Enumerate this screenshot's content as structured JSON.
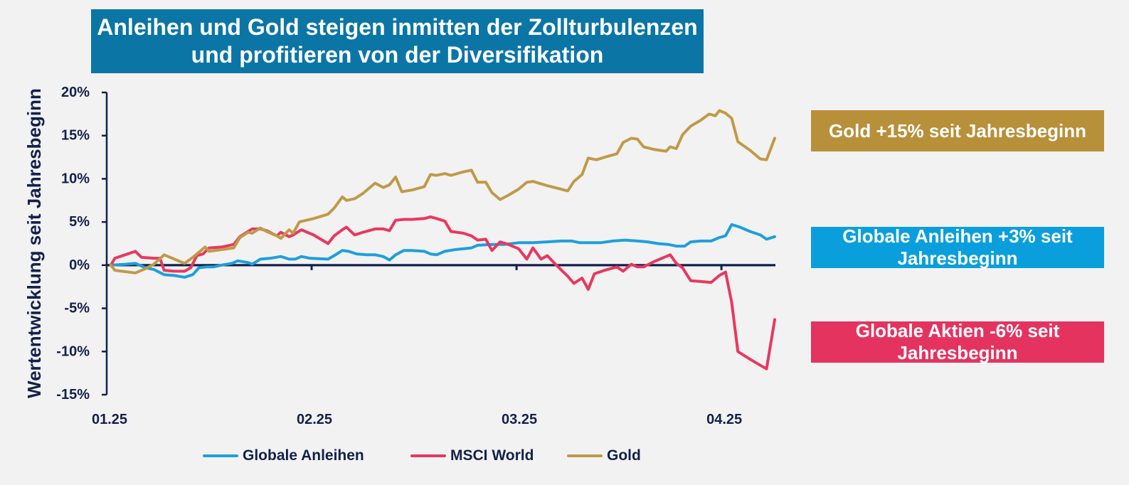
{
  "style": {
    "page_bg": "#f2f2f2",
    "title_bg": "#0b75a6",
    "axis_color": "#13214a"
  },
  "chart_data": {
    "type": "line",
    "title_lines": [
      "Anleihen und Gold steigen inmitten der Zollturbulenzen",
      "und profitieren von der Diversifikation"
    ],
    "xlabel": "",
    "ylabel": "Wertentwicklung seit Jahresbeginn",
    "xlim": [
      0,
      3.26
    ],
    "ylim": [
      -15,
      20
    ],
    "grid": false,
    "legend": "bottom",
    "xticks": [
      {
        "value": 0,
        "label": "01.25"
      },
      {
        "value": 1,
        "label": "02.25"
      },
      {
        "value": 2,
        "label": "03.25"
      },
      {
        "value": 3,
        "label": "04.25"
      }
    ],
    "yticks": [
      {
        "value": 20,
        "label": "20%"
      },
      {
        "value": 15,
        "label": "15%"
      },
      {
        "value": 10,
        "label": "10%"
      },
      {
        "value": 5,
        "label": "5%"
      },
      {
        "value": 0,
        "label": "0%"
      },
      {
        "value": -5,
        "label": "-5%"
      },
      {
        "value": -10,
        "label": "-10%"
      },
      {
        "value": -15,
        "label": "-15%"
      }
    ],
    "series": [
      {
        "name": "Globale Anleihen",
        "color": "#1e9fdc",
        "points": [
          [
            0.02,
            0.0
          ],
          [
            0.09,
            0.1
          ],
          [
            0.14,
            0.2
          ],
          [
            0.19,
            -0.3
          ],
          [
            0.23,
            -0.5
          ],
          [
            0.28,
            -1.1
          ],
          [
            0.33,
            -1.2
          ],
          [
            0.38,
            -1.4
          ],
          [
            0.42,
            -1.1
          ],
          [
            0.45,
            -0.3
          ],
          [
            0.49,
            -0.2
          ],
          [
            0.52,
            -0.2
          ],
          [
            0.56,
            0.0
          ],
          [
            0.61,
            0.2
          ],
          [
            0.64,
            0.5
          ],
          [
            0.69,
            0.3
          ],
          [
            0.71,
            0.1
          ],
          [
            0.75,
            0.7
          ],
          [
            0.8,
            0.8
          ],
          [
            0.85,
            1.0
          ],
          [
            0.89,
            0.7
          ],
          [
            0.92,
            0.7
          ],
          [
            0.95,
            1.0
          ],
          [
            0.99,
            0.8
          ],
          [
            1.08,
            0.7
          ],
          [
            1.11,
            1.1
          ],
          [
            1.15,
            1.7
          ],
          [
            1.18,
            1.6
          ],
          [
            1.22,
            1.3
          ],
          [
            1.27,
            1.2
          ],
          [
            1.31,
            1.2
          ],
          [
            1.35,
            1.0
          ],
          [
            1.38,
            0.6
          ],
          [
            1.41,
            1.2
          ],
          [
            1.45,
            1.7
          ],
          [
            1.49,
            1.7
          ],
          [
            1.55,
            1.6
          ],
          [
            1.58,
            1.3
          ],
          [
            1.61,
            1.2
          ],
          [
            1.65,
            1.6
          ],
          [
            1.7,
            1.8
          ],
          [
            1.78,
            2.0
          ],
          [
            1.81,
            2.3
          ],
          [
            1.88,
            2.4
          ],
          [
            1.94,
            2.4
          ],
          [
            2.01,
            2.6
          ],
          [
            2.08,
            2.6
          ],
          [
            2.15,
            2.7
          ],
          [
            2.22,
            2.8
          ],
          [
            2.27,
            2.8
          ],
          [
            2.31,
            2.6
          ],
          [
            2.36,
            2.6
          ],
          [
            2.41,
            2.6
          ],
          [
            2.47,
            2.8
          ],
          [
            2.53,
            2.9
          ],
          [
            2.59,
            2.8
          ],
          [
            2.64,
            2.7
          ],
          [
            2.69,
            2.5
          ],
          [
            2.74,
            2.4
          ],
          [
            2.78,
            2.2
          ],
          [
            2.82,
            2.2
          ],
          [
            2.85,
            2.7
          ],
          [
            2.9,
            2.8
          ],
          [
            2.95,
            2.8
          ],
          [
            2.99,
            3.2
          ],
          [
            3.02,
            3.4
          ],
          [
            3.05,
            4.7
          ],
          [
            3.09,
            4.4
          ],
          [
            3.14,
            3.9
          ],
          [
            3.19,
            3.5
          ],
          [
            3.22,
            3.0
          ],
          [
            3.26,
            3.3
          ]
        ]
      },
      {
        "name": "MSCI World",
        "color": "#e8385f",
        "points": [
          [
            0.02,
            0.0
          ],
          [
            0.04,
            0.8
          ],
          [
            0.09,
            1.2
          ],
          [
            0.14,
            1.6
          ],
          [
            0.17,
            0.9
          ],
          [
            0.23,
            0.8
          ],
          [
            0.26,
            0.8
          ],
          [
            0.28,
            -0.6
          ],
          [
            0.33,
            -0.7
          ],
          [
            0.38,
            -0.7
          ],
          [
            0.41,
            -0.3
          ],
          [
            0.44,
            1.1
          ],
          [
            0.47,
            1.3
          ],
          [
            0.5,
            2.0
          ],
          [
            0.56,
            2.1
          ],
          [
            0.62,
            2.4
          ],
          [
            0.65,
            3.3
          ],
          [
            0.69,
            3.9
          ],
          [
            0.71,
            4.2
          ],
          [
            0.75,
            4.2
          ],
          [
            0.78,
            4.0
          ],
          [
            0.83,
            3.4
          ],
          [
            0.85,
            3.8
          ],
          [
            0.89,
            3.3
          ],
          [
            0.91,
            3.5
          ],
          [
            0.95,
            4.1
          ],
          [
            1.01,
            3.5
          ],
          [
            1.08,
            2.5
          ],
          [
            1.11,
            3.4
          ],
          [
            1.15,
            4.1
          ],
          [
            1.17,
            4.4
          ],
          [
            1.21,
            3.5
          ],
          [
            1.25,
            3.8
          ],
          [
            1.31,
            4.2
          ],
          [
            1.35,
            4.2
          ],
          [
            1.38,
            4.0
          ],
          [
            1.41,
            5.2
          ],
          [
            1.45,
            5.3
          ],
          [
            1.49,
            5.3
          ],
          [
            1.55,
            5.4
          ],
          [
            1.58,
            5.6
          ],
          [
            1.61,
            5.4
          ],
          [
            1.65,
            5.1
          ],
          [
            1.68,
            3.9
          ],
          [
            1.74,
            3.7
          ],
          [
            1.78,
            3.4
          ],
          [
            1.81,
            2.9
          ],
          [
            1.85,
            3.0
          ],
          [
            1.88,
            1.7
          ],
          [
            1.92,
            2.7
          ],
          [
            1.96,
            2.4
          ],
          [
            2.01,
            1.9
          ],
          [
            2.05,
            0.7
          ],
          [
            2.08,
            2.0
          ],
          [
            2.12,
            0.7
          ],
          [
            2.15,
            1.1
          ],
          [
            2.19,
            0.1
          ],
          [
            2.25,
            -1.3
          ],
          [
            2.28,
            -2.1
          ],
          [
            2.32,
            -1.5
          ],
          [
            2.35,
            -2.8
          ],
          [
            2.38,
            -1.0
          ],
          [
            2.43,
            -0.6
          ],
          [
            2.49,
            -0.2
          ],
          [
            2.52,
            -0.7
          ],
          [
            2.56,
            0.1
          ],
          [
            2.59,
            -0.2
          ],
          [
            2.62,
            -0.2
          ],
          [
            2.67,
            0.4
          ],
          [
            2.73,
            1.0
          ],
          [
            2.75,
            1.2
          ],
          [
            2.78,
            0.2
          ],
          [
            2.81,
            -0.3
          ],
          [
            2.85,
            -1.8
          ],
          [
            2.9,
            -1.9
          ],
          [
            2.95,
            -2.0
          ],
          [
            2.99,
            -1.2
          ],
          [
            3.02,
            -0.8
          ],
          [
            3.05,
            -4.3
          ],
          [
            3.08,
            -10.0
          ],
          [
            3.14,
            -10.9
          ],
          [
            3.19,
            -11.6
          ],
          [
            3.22,
            -12.0
          ],
          [
            3.26,
            -6.3
          ]
        ]
      },
      {
        "name": "Gold",
        "color": "#c09a48",
        "points": [
          [
            0.02,
            0.0
          ],
          [
            0.04,
            -0.6
          ],
          [
            0.14,
            -0.9
          ],
          [
            0.19,
            -0.4
          ],
          [
            0.23,
            0.1
          ],
          [
            0.28,
            1.2
          ],
          [
            0.33,
            0.7
          ],
          [
            0.38,
            0.2
          ],
          [
            0.42,
            0.9
          ],
          [
            0.48,
            2.1
          ],
          [
            0.5,
            1.6
          ],
          [
            0.56,
            1.8
          ],
          [
            0.62,
            2.0
          ],
          [
            0.65,
            3.2
          ],
          [
            0.69,
            3.8
          ],
          [
            0.71,
            3.7
          ],
          [
            0.75,
            4.3
          ],
          [
            0.78,
            3.9
          ],
          [
            0.83,
            3.4
          ],
          [
            0.85,
            3.1
          ],
          [
            0.89,
            4.1
          ],
          [
            0.91,
            3.7
          ],
          [
            0.94,
            5.0
          ],
          [
            1.01,
            5.4
          ],
          [
            1.08,
            5.9
          ],
          [
            1.11,
            6.6
          ],
          [
            1.15,
            7.9
          ],
          [
            1.17,
            7.5
          ],
          [
            1.21,
            7.7
          ],
          [
            1.25,
            8.3
          ],
          [
            1.31,
            9.5
          ],
          [
            1.35,
            9.0
          ],
          [
            1.38,
            9.3
          ],
          [
            1.41,
            10.2
          ],
          [
            1.44,
            8.5
          ],
          [
            1.49,
            8.7
          ],
          [
            1.55,
            9.1
          ],
          [
            1.58,
            10.5
          ],
          [
            1.61,
            10.4
          ],
          [
            1.65,
            10.6
          ],
          [
            1.68,
            10.4
          ],
          [
            1.74,
            10.8
          ],
          [
            1.78,
            11.0
          ],
          [
            1.81,
            9.6
          ],
          [
            1.85,
            9.6
          ],
          [
            1.88,
            8.4
          ],
          [
            1.92,
            7.6
          ],
          [
            1.96,
            8.1
          ],
          [
            2.01,
            8.8
          ],
          [
            2.05,
            9.6
          ],
          [
            2.08,
            9.7
          ],
          [
            2.15,
            9.2
          ],
          [
            2.25,
            8.6
          ],
          [
            2.28,
            9.7
          ],
          [
            2.32,
            10.5
          ],
          [
            2.35,
            12.4
          ],
          [
            2.39,
            12.2
          ],
          [
            2.43,
            12.5
          ],
          [
            2.49,
            12.9
          ],
          [
            2.52,
            14.2
          ],
          [
            2.56,
            14.7
          ],
          [
            2.59,
            14.6
          ],
          [
            2.62,
            13.7
          ],
          [
            2.67,
            13.4
          ],
          [
            2.73,
            13.2
          ],
          [
            2.75,
            13.7
          ],
          [
            2.78,
            13.5
          ],
          [
            2.81,
            15.1
          ],
          [
            2.85,
            16.1
          ],
          [
            2.9,
            16.8
          ],
          [
            2.94,
            17.5
          ],
          [
            2.97,
            17.3
          ],
          [
            2.99,
            17.9
          ],
          [
            3.02,
            17.6
          ],
          [
            3.05,
            17.0
          ],
          [
            3.08,
            14.3
          ],
          [
            3.14,
            13.3
          ],
          [
            3.19,
            12.3
          ],
          [
            3.22,
            12.2
          ],
          [
            3.26,
            14.7
          ]
        ]
      }
    ],
    "annotations": [
      {
        "lines": [
          "Gold +15% seit Jahresbeginn"
        ],
        "color": "#b8903a"
      },
      {
        "lines": [
          "Globale Anleihen +3% seit",
          "Jahresbeginn"
        ],
        "color": "#0a9fdc"
      },
      {
        "lines": [
          "Globale Aktien -6% seit",
          "Jahresbeginn"
        ],
        "color": "#e4335f"
      }
    ]
  }
}
